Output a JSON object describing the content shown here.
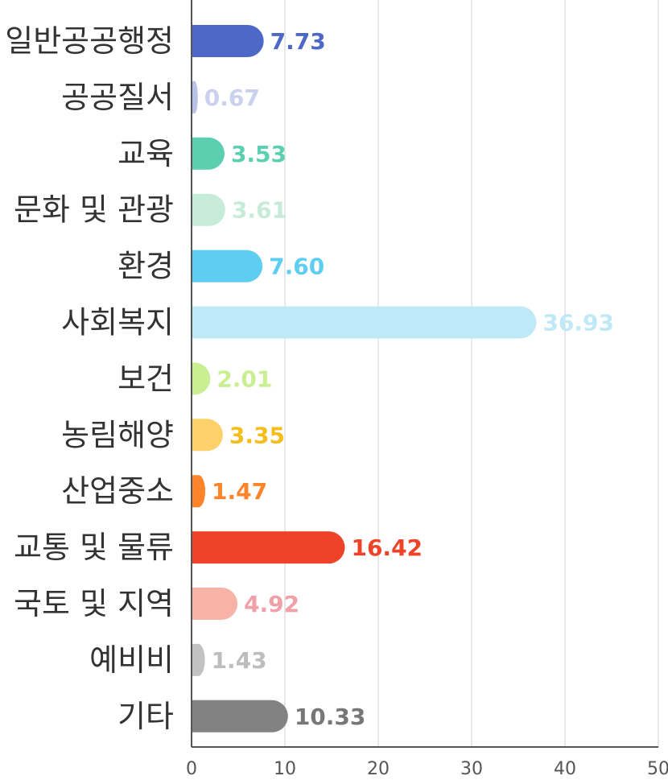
{
  "chart_data": {
    "type": "bar",
    "orientation": "horizontal",
    "title": "",
    "xlabel": "",
    "ylabel": "",
    "xlim": [
      0,
      50
    ],
    "x_ticks": [
      "0",
      "10",
      "20",
      "30",
      "40",
      "50"
    ],
    "grid": "vertical",
    "legend": "none",
    "categories": [
      "일반공공행정",
      "공공질서",
      "교육",
      "문화 및 관광",
      "환경",
      "사회복지",
      "보건",
      "농림해양",
      "산업중소",
      "교통 및 물류",
      "국토 및 지역",
      "예비비",
      "기타"
    ],
    "values": [
      7.73,
      0.67,
      3.53,
      3.61,
      7.6,
      36.93,
      2.01,
      3.35,
      1.47,
      16.42,
      4.92,
      1.43,
      10.33
    ],
    "value_labels": [
      "7.73",
      "0.67",
      "3.53",
      "3.61",
      "7.60",
      "36.93",
      "2.01",
      "3.35",
      "1.47",
      "16.42",
      "4.92",
      "1.43",
      "10.33"
    ],
    "bar_colors": [
      "#4e68c8",
      "#b7c2e6",
      "#5ccfb0",
      "#c6ecd9",
      "#5ecdf2",
      "#c0e9f8",
      "#c9ef92",
      "#fdd06a",
      "#fd842a",
      "#ee4328",
      "#f7b3a6",
      "#c2c2c2",
      "#828282"
    ],
    "label_colors": [
      "#4e68c8",
      "#c9d1ee",
      "#5ccfb0",
      "#c6ecd9",
      "#5ecdf2",
      "#c0e9f8",
      "#c9ef92",
      "#f5bd1a",
      "#fd842a",
      "#ee4328",
      "#f0a0a6",
      "#bdbdbd",
      "#777777"
    ]
  }
}
